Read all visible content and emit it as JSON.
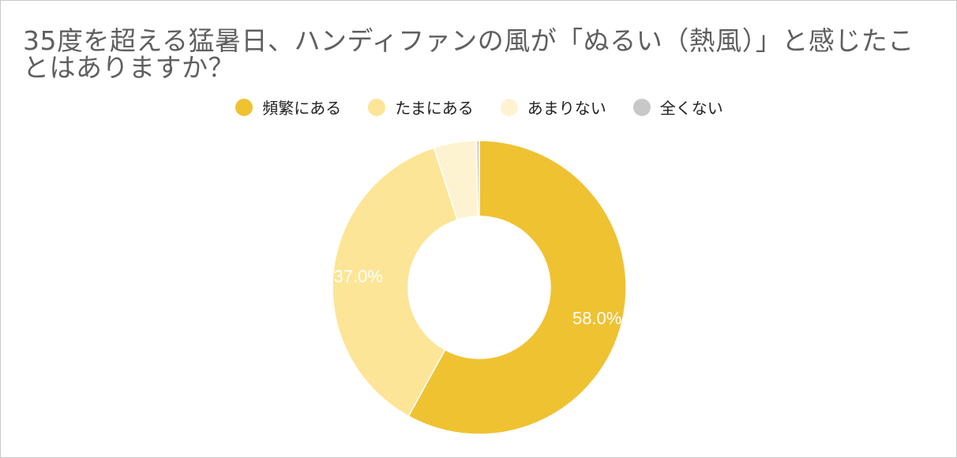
{
  "chart_data": {
    "type": "pie",
    "title": "35度を超える猛暑日、ハンディファンの風が「ぬるい（熱風）」と感じたことはありますか？",
    "donut": true,
    "legend_position": "top",
    "slices": [
      {
        "name": "頻繁にある",
        "value": 58.0,
        "label": "58.0%",
        "color": "#efc232"
      },
      {
        "name": "たまにある",
        "value": 37.0,
        "label": "37.0%",
        "color": "#fde597"
      },
      {
        "name": "あまりない",
        "value": 4.7,
        "label": "",
        "color": "#fef3d1"
      },
      {
        "name": "全くない",
        "value": 0.3,
        "label": "",
        "color": "#c8c8c8"
      }
    ]
  }
}
